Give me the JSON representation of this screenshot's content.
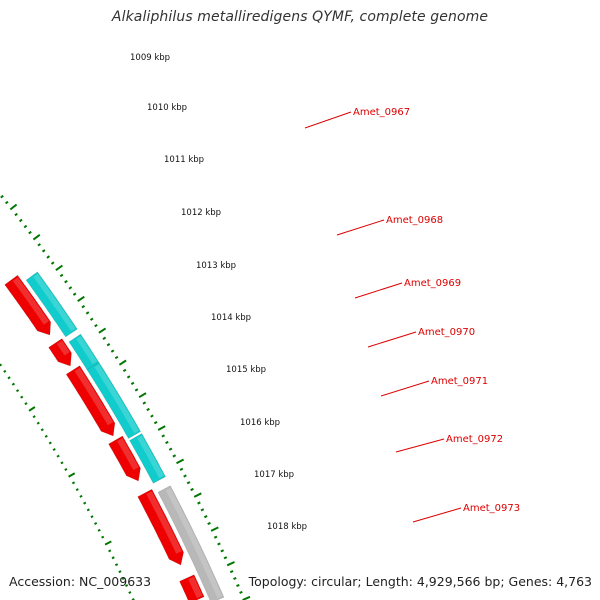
{
  "title": "Alkaliphilus metalliredigens QYMF, complete genome",
  "accession": "Accession: NC_009633",
  "summary": "Topology: circular; Length: 4,929,566 bp; Genes: 4,763",
  "colors": {
    "gene_label": "#dd0000",
    "forward_strand": "#ee0000",
    "green_track": "#33cc33",
    "cyan_track": "#11cccc",
    "gray_track": "#b8b8b8",
    "pink_track": "#ff66bb",
    "tick_green": "#007700",
    "backbone_gray": "#7a7a7a"
  },
  "kbp_labels": [
    "1009 kbp",
    "1010 kbp",
    "1011 kbp",
    "1012 kbp",
    "1013 kbp",
    "1014 kbp",
    "1015 kbp",
    "1016 kbp",
    "1017 kbp",
    "1018 kbp"
  ],
  "genes": [
    "Amet_0967",
    "Amet_0968",
    "Amet_0969",
    "Amet_0970",
    "Amet_0971",
    "Amet_0972",
    "Amet_0973"
  ]
}
